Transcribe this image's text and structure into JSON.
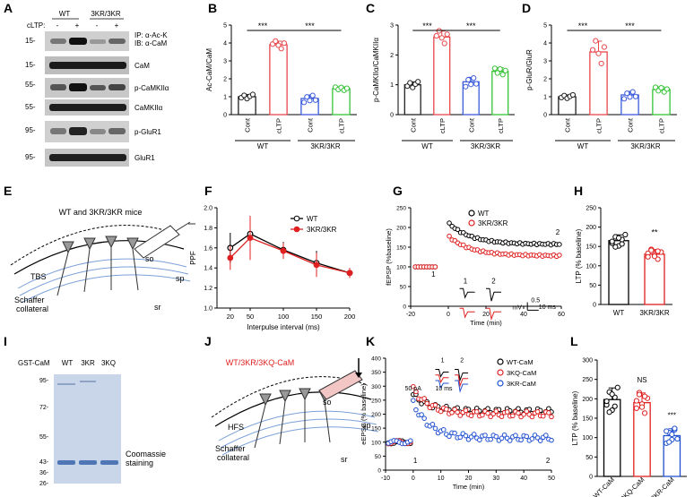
{
  "panels": {
    "A": "A",
    "B": "B",
    "C": "C",
    "D": "D",
    "E": "E",
    "F": "F",
    "G": "G",
    "H": "H",
    "I": "I",
    "J": "J",
    "K": "K",
    "L": "L"
  },
  "blot_a": {
    "groups": [
      "WT",
      "3KR/3KR"
    ],
    "cltp_label": "cLTP:",
    "cltp_signs": [
      "-",
      "+",
      "-",
      "+"
    ],
    "bands": [
      {
        "mw": "15-",
        "label": "IP: α-Ac-K\nIB: α-CaM"
      },
      {
        "mw": "15-",
        "label": "CaM"
      },
      {
        "mw": "55-",
        "label": "p-CaMKIIα"
      },
      {
        "mw": "55-",
        "label": "CaMKIIα"
      },
      {
        "mw": "95-",
        "label": "p-GluR1"
      },
      {
        "mw": "95-",
        "label": "GluR1"
      }
    ]
  },
  "chart_data": [
    {
      "id": "B",
      "type": "bar",
      "ylabel": "Ac-CaM/CaM",
      "ylim": [
        0,
        5
      ],
      "yticks": [
        0,
        1,
        2,
        3,
        4,
        5
      ],
      "categories": [
        "Cont",
        "cLTP",
        "Cont",
        "cLTP"
      ],
      "groups": [
        "WT",
        "3KR/3KR"
      ],
      "values": [
        1.0,
        3.9,
        0.9,
        1.45
      ],
      "errors": [
        0.12,
        0.2,
        0.2,
        0.1
      ],
      "colors": [
        "#222222",
        "#e8474b",
        "#3b5bdb",
        "#36c236"
      ],
      "significance": [
        "***",
        "***"
      ]
    },
    {
      "id": "C",
      "type": "bar",
      "ylabel": "p-CaMKIIα/CaMKIIα",
      "ylim": [
        0,
        3
      ],
      "yticks": [
        0,
        1,
        2,
        3
      ],
      "categories": [
        "Cont",
        "cLTP",
        "Cont",
        "cLTP"
      ],
      "groups": [
        "WT",
        "3KR/3KR"
      ],
      "values": [
        1.0,
        2.6,
        1.1,
        1.45
      ],
      "errors": [
        0.1,
        0.2,
        0.15,
        0.12
      ],
      "colors": [
        "#222222",
        "#e8474b",
        "#3b5bdb",
        "#36c236"
      ],
      "significance": [
        "***",
        "***"
      ]
    },
    {
      "id": "D",
      "type": "bar",
      "ylabel": "p-GluR/GluR",
      "ylim": [
        0,
        5
      ],
      "yticks": [
        0,
        1,
        2,
        3,
        4,
        5
      ],
      "categories": [
        "Cont",
        "cLTP",
        "Cont",
        "cLTP"
      ],
      "groups": [
        "WT",
        "3KR/3KR"
      ],
      "values": [
        1.0,
        3.5,
        1.1,
        1.4
      ],
      "errors": [
        0.1,
        0.6,
        0.2,
        0.15
      ],
      "colors": [
        "#222222",
        "#e8474b",
        "#3b5bdb",
        "#36c236"
      ],
      "significance": [
        "***",
        "***"
      ]
    },
    {
      "id": "F",
      "type": "line",
      "xlabel": "Interpulse interval (ms)",
      "ylabel": "PPF",
      "xlim": [
        0,
        200
      ],
      "ylim": [
        1.0,
        2.0
      ],
      "xticks": [
        20,
        50,
        100,
        150,
        200
      ],
      "yticks": [
        1.0,
        1.2,
        1.4,
        1.6,
        1.8,
        2.0
      ],
      "series": [
        {
          "name": "WT",
          "x": [
            20,
            50,
            100,
            150,
            200
          ],
          "y": [
            1.6,
            1.74,
            1.58,
            1.45,
            1.35
          ],
          "err": [
            0.15,
            0.18,
            0.08,
            0.12,
            0.05
          ],
          "color": "#000000"
        },
        {
          "name": "3KR/3KR",
          "x": [
            20,
            50,
            100,
            150,
            200
          ],
          "y": [
            1.5,
            1.7,
            1.57,
            1.43,
            1.35
          ],
          "err": [
            0.12,
            0.22,
            0.08,
            0.12,
            0.05
          ],
          "color": "#e02020"
        }
      ]
    },
    {
      "id": "G",
      "type": "scatter",
      "xlabel": "Time (min)",
      "ylabel": "fEPSP (%baseline)",
      "xlim": [
        -20,
        60
      ],
      "ylim": [
        0,
        250
      ],
      "xticks": [
        -20,
        0,
        20,
        40,
        60
      ],
      "series": [
        {
          "name": "WT",
          "color": "#000000",
          "baseline": 100,
          "peak": 212,
          "plateau": 157
        },
        {
          "name": "3KR/3KR",
          "color": "#e02020",
          "baseline": 100,
          "peak": 178,
          "plateau": 128
        }
      ],
      "markers": [
        "1",
        "2"
      ],
      "scale_v": "0.5",
      "scale_v_unit": "mV",
      "scale_t": "10 ms"
    },
    {
      "id": "H",
      "type": "bar",
      "ylabel": "LTP (% baseline)",
      "ylim": [
        0,
        250
      ],
      "yticks": [
        0,
        50,
        100,
        150,
        200,
        250
      ],
      "categories": [
        "WT",
        "3KR/3KR"
      ],
      "values": [
        165,
        130
      ],
      "errors": [
        15,
        12
      ],
      "colors": [
        "#000000",
        "#e02020"
      ],
      "significance": [
        "**"
      ]
    },
    {
      "id": "K",
      "type": "scatter",
      "xlabel": "Time (min)",
      "ylabel": "eEPSC (% baseline)",
      "xlim": [
        -10,
        50
      ],
      "ylim": [
        0,
        400
      ],
      "xticks": [
        -10,
        0,
        10,
        20,
        30,
        40,
        50
      ],
      "yticks": [
        0,
        50,
        100,
        150,
        200,
        250,
        300,
        350,
        400
      ],
      "series": [
        {
          "name": "WT-CaM",
          "color": "#000000",
          "baseline": 100,
          "peak": 270,
          "plateau": 210
        },
        {
          "name": "3KQ-CaM",
          "color": "#e02020",
          "baseline": 100,
          "peak": 290,
          "plateau": 200
        },
        {
          "name": "3KR-CaM",
          "color": "#2050d0",
          "baseline": 100,
          "peak": 240,
          "plateau": 115
        }
      ],
      "markers": [
        "1",
        "2"
      ],
      "scale": "50 pA",
      "scale_t": "10 ms"
    },
    {
      "id": "L",
      "type": "bar",
      "ylabel": "LTP (% baseline)",
      "ylim": [
        0,
        300
      ],
      "yticks": [
        0,
        50,
        100,
        150,
        200,
        250,
        300
      ],
      "categories": [
        "WT-CaM",
        "3KQ-CaM",
        "3KR-CaM"
      ],
      "values": [
        198,
        190,
        105
      ],
      "errors": [
        30,
        25,
        18
      ],
      "colors": [
        "#000000",
        "#e02020",
        "#2050d0"
      ],
      "significance": [
        "NS",
        "***"
      ]
    }
  ],
  "schematic_e": {
    "title": "WT and 3KR/3KR mice",
    "labels": [
      "so",
      "sp",
      "sr",
      "TBS",
      "Schaffer",
      "collateral"
    ]
  },
  "gel_i": {
    "header": "GST-CaM",
    "lanes": [
      "WT",
      "3KR",
      "3KQ"
    ],
    "mw": [
      "95-",
      "72-",
      "55-",
      "43-",
      "36-",
      "26-"
    ],
    "label": "Coomassie\nstaining"
  },
  "schematic_j": {
    "title": "WT/3KR/3KQ-CaM",
    "labels": [
      "so",
      "sp",
      "sr",
      "HFS",
      "Schaffer",
      "collateral"
    ]
  }
}
